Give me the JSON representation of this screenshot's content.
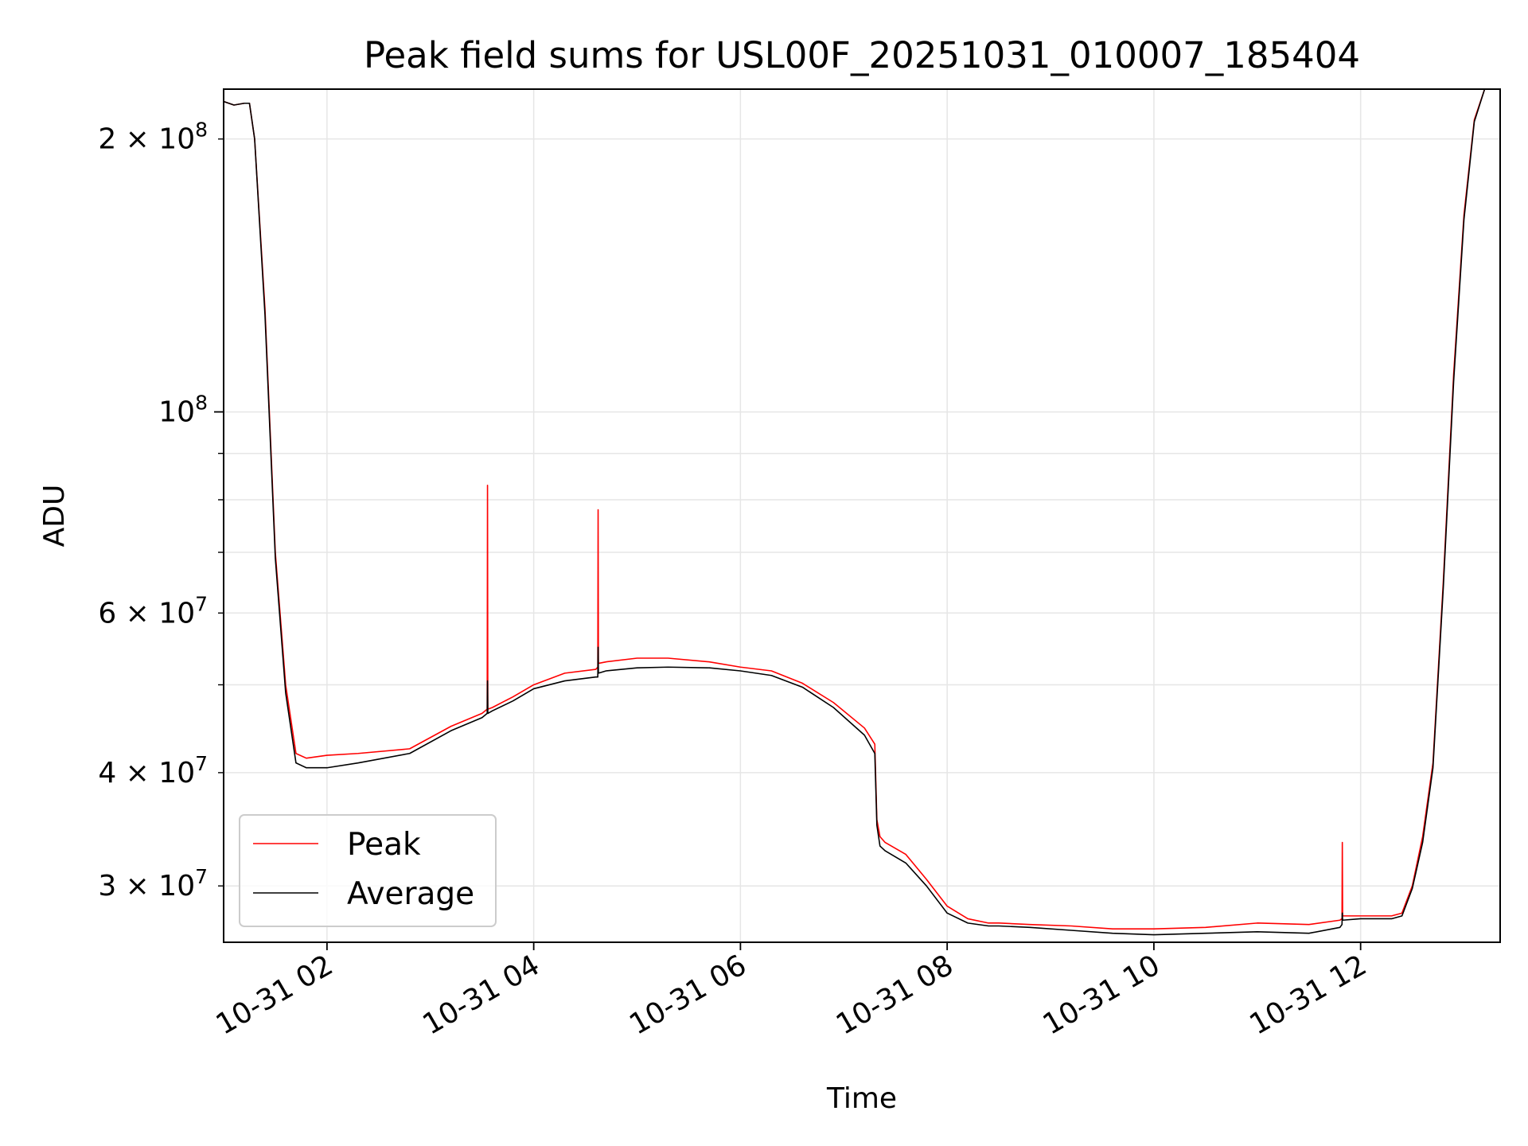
{
  "chart_data": {
    "type": "line",
    "title": "Peak field sums for USL00F_20251031_010007_185404",
    "xlabel": "Time",
    "ylabel": "ADU",
    "yscale": "log",
    "xlim": [
      1.0,
      13.35
    ],
    "ylim": [
      26000000,
      227000000
    ],
    "grid": true,
    "legend_position": "lower-left",
    "x_ticks": [
      {
        "value": 2,
        "label": "10-31 02"
      },
      {
        "value": 4,
        "label": "10-31 04"
      },
      {
        "value": 6,
        "label": "10-31 06"
      },
      {
        "value": 8,
        "label": "10-31 08"
      },
      {
        "value": 10,
        "label": "10-31 10"
      },
      {
        "value": 12,
        "label": "10-31 12"
      }
    ],
    "y_ticks_major": [
      {
        "value": 100000000,
        "base": "10",
        "exp": "8"
      }
    ],
    "y_ticks_minor_labeled": [
      {
        "value": 30000000,
        "mant": "3",
        "exp": "7"
      },
      {
        "value": 40000000,
        "mant": "4",
        "exp": "7"
      },
      {
        "value": 60000000,
        "mant": "6",
        "exp": "7"
      },
      {
        "value": 200000000,
        "mant": "2",
        "exp": "8"
      }
    ],
    "y_ticks_minor_unlabeled": [
      50000000,
      70000000,
      80000000,
      90000000
    ],
    "series": [
      {
        "name": "Peak",
        "color": "#ff0000",
        "x": [
          1.0,
          1.1,
          1.2,
          1.25,
          1.3,
          1.4,
          1.5,
          1.6,
          1.7,
          1.8,
          2.0,
          2.3,
          2.8,
          3.2,
          3.5,
          3.55,
          3.553,
          3.556,
          3.6,
          3.8,
          4.0,
          4.3,
          4.6,
          4.62,
          4.623,
          4.626,
          4.7,
          5.0,
          5.3,
          5.7,
          6.0,
          6.3,
          6.6,
          6.9,
          7.2,
          7.3,
          7.32,
          7.35,
          7.4,
          7.6,
          7.8,
          8.0,
          8.2,
          8.4,
          8.5,
          8.8,
          9.2,
          9.6,
          10.0,
          10.5,
          11.0,
          11.5,
          11.8,
          11.82,
          11.823,
          11.826,
          12.0,
          12.3,
          12.4,
          12.5,
          12.6,
          12.7,
          12.8,
          12.9,
          13.0,
          13.1,
          13.2,
          13.3,
          13.35
        ],
        "y": [
          220000000,
          218000000,
          219000000,
          219000000,
          200000000,
          130000000,
          70000000,
          50000000,
          42000000,
          41500000,
          41800000,
          42000000,
          42500000,
          45000000,
          46500000,
          47000000,
          83000000,
          47000000,
          47200000,
          48500000,
          50000000,
          51500000,
          52000000,
          52300000,
          78000000,
          52800000,
          53000000,
          53500000,
          53500000,
          53000000,
          52300000,
          51800000,
          50200000,
          47800000,
          44800000,
          43000000,
          35500000,
          34000000,
          33500000,
          32500000,
          30500000,
          28500000,
          27600000,
          27300000,
          27300000,
          27200000,
          27100000,
          26900000,
          26900000,
          27000000,
          27300000,
          27200000,
          27500000,
          27600000,
          33500000,
          27800000,
          27800000,
          27800000,
          28000000,
          30000000,
          34000000,
          41000000,
          65000000,
          110000000,
          165000000,
          210000000,
          227000000,
          227000000,
          227000000
        ]
      },
      {
        "name": "Average",
        "color": "#000000",
        "x": [
          1.0,
          1.1,
          1.2,
          1.25,
          1.3,
          1.4,
          1.5,
          1.6,
          1.7,
          1.8,
          2.0,
          2.3,
          2.8,
          3.2,
          3.5,
          3.55,
          3.553,
          3.556,
          3.6,
          3.8,
          4.0,
          4.3,
          4.6,
          4.62,
          4.623,
          4.626,
          4.7,
          5.0,
          5.3,
          5.7,
          6.0,
          6.3,
          6.6,
          6.9,
          7.2,
          7.3,
          7.32,
          7.35,
          7.4,
          7.6,
          7.8,
          8.0,
          8.2,
          8.4,
          8.5,
          8.8,
          9.2,
          9.6,
          10.0,
          10.5,
          11.0,
          11.5,
          11.8,
          11.82,
          11.823,
          11.826,
          12.0,
          12.3,
          12.4,
          12.5,
          12.6,
          12.7,
          12.8,
          12.9,
          13.0,
          13.1,
          13.2,
          13.3,
          13.35
        ],
        "y": [
          220000000,
          218000000,
          219000000,
          219000000,
          200000000,
          128000000,
          69000000,
          49000000,
          41000000,
          40500000,
          40500000,
          41000000,
          42000000,
          44500000,
          46000000,
          46500000,
          50500000,
          46500000,
          46800000,
          48000000,
          49500000,
          50500000,
          51000000,
          51000000,
          55000000,
          51500000,
          51800000,
          52200000,
          52300000,
          52200000,
          51800000,
          51200000,
          49700000,
          47200000,
          44000000,
          42000000,
          35000000,
          33200000,
          32800000,
          31800000,
          30000000,
          28000000,
          27300000,
          27100000,
          27100000,
          27000000,
          26800000,
          26600000,
          26500000,
          26600000,
          26700000,
          26600000,
          27000000,
          27200000,
          28000000,
          27500000,
          27600000,
          27600000,
          27800000,
          29800000,
          33500000,
          40500000,
          64000000,
          108000000,
          163000000,
          209000000,
          227000000,
          227000000,
          227000000
        ]
      }
    ]
  }
}
